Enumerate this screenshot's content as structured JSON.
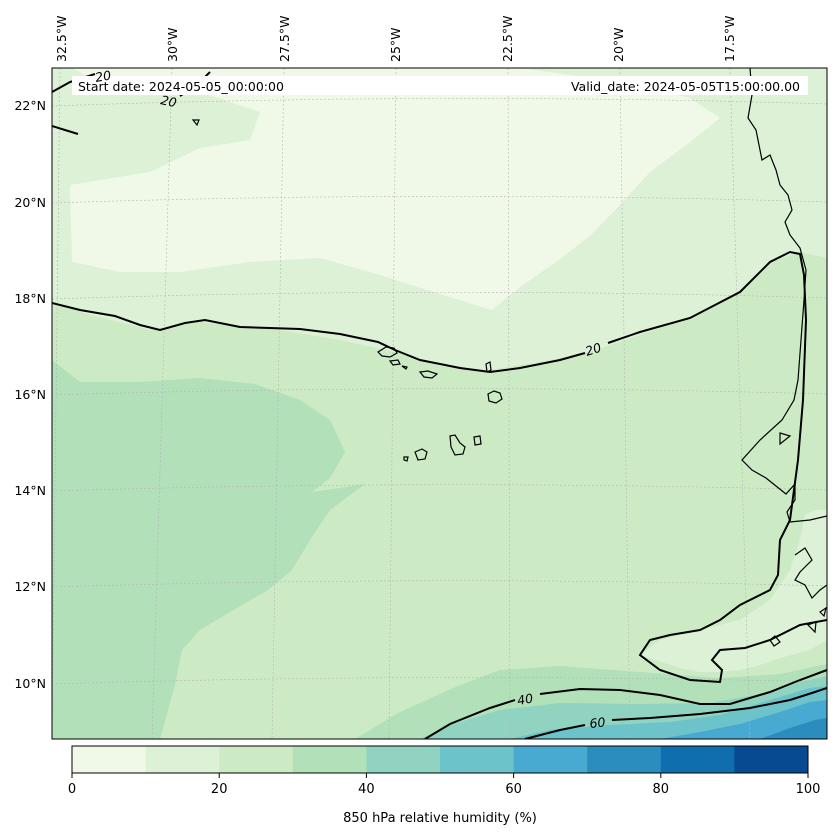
{
  "header": {
    "start_date": "Start date: 2024-05-05_00:00:00",
    "valid_date": "Valid_date: 2024-05-05T15:00:00.00"
  },
  "longitude_labels": [
    "32.5°W",
    "30°W",
    "27.5°W",
    "25°W",
    "22.5°W",
    "20°W",
    "17.5°W"
  ],
  "latitude_labels": [
    "22°N",
    "20°N",
    "18°N",
    "16°N",
    "14°N",
    "12°N",
    "10°N"
  ],
  "contour_labels": [
    "20",
    "20",
    "20",
    "40",
    "60"
  ],
  "colorbar": {
    "label": "850 hPa relative humidity (%)",
    "ticks": [
      "0",
      "20",
      "40",
      "60",
      "80",
      "100"
    ],
    "colors": [
      "#f0f9e8",
      "#ddf1d7",
      "#ccebc5",
      "#b1e0b9",
      "#8fd3c0",
      "#6cc3c9",
      "#49aad1",
      "#2b8cbe",
      "#0f6fae",
      "#084a91"
    ]
  }
}
